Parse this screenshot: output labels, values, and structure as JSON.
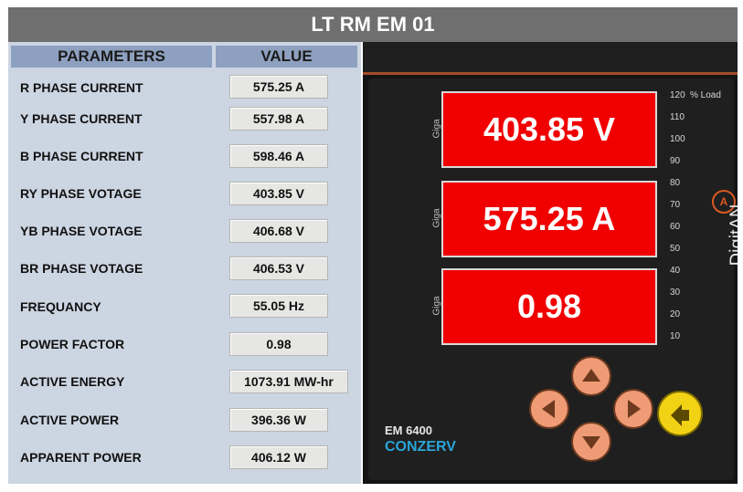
{
  "title": "LT RM EM 01",
  "table": {
    "headers": {
      "parameters": "PARAMETERS",
      "value": "VALUE"
    },
    "rows": [
      {
        "label": "R PHASE CURRENT",
        "value": "575.25 A"
      },
      {
        "label": "Y PHASE CURRENT",
        "value": "557.98 A"
      },
      {
        "label": "B PHASE CURRENT",
        "value": "598.46 A"
      },
      {
        "label": "RY PHASE VOTAGE",
        "value": "403.85 V"
      },
      {
        "label": "YB PHASE VOTAGE",
        "value": "406.68 V"
      },
      {
        "label": "BR PHASE VOTAGE",
        "value": "406.53 V"
      },
      {
        "label": "FREQUANCY",
        "value": "55.05 Hz"
      },
      {
        "label": "POWER FACTOR",
        "value": "0.98"
      },
      {
        "label": "ACTIVE ENERGY",
        "value": "1073.91 MW-hr"
      },
      {
        "label": "ACTIVE POWER",
        "value": "396.36 W"
      },
      {
        "label": "APPARENT POWER",
        "value": "406.12 W"
      }
    ]
  },
  "meter": {
    "displays": [
      "403.85 V",
      "575.25 A",
      "0.98"
    ],
    "giga_label": "Giga",
    "scale_unit": "% Load",
    "scale": [
      "120",
      "110",
      "100",
      "90",
      "80",
      "70",
      "60",
      "50",
      "40",
      "30",
      "20",
      "10"
    ],
    "brand": "DigitAN",
    "model": "EM 6400",
    "maker": "CONZERV",
    "display_color": "#f00000",
    "button_color": "#ef9b75",
    "ok_button_color": "#f2d214"
  }
}
